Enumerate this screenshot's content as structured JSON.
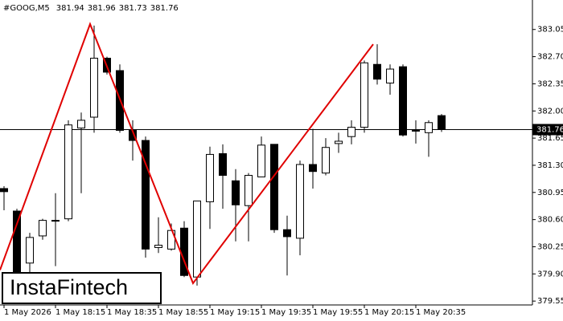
{
  "chart_data": {
    "type": "candlestick",
    "title": "#GOOG,M5",
    "watermark": "InstaFintech",
    "categories": [
      "1 May 2026",
      null,
      null,
      null,
      "1 May 18:15",
      null,
      null,
      null,
      "1 May 18:35",
      null,
      null,
      null,
      "1 May 18:55",
      null,
      null,
      null,
      "1 May 19:15",
      null,
      null,
      null,
      "1 May 19:35",
      null,
      null,
      null,
      "1 May 19:55",
      null,
      null,
      null,
      "1 May 20:15",
      null,
      null,
      null,
      "1 May 20:35",
      null,
      null
    ],
    "open": [
      381.0,
      380.71,
      380.04,
      380.39,
      380.58,
      380.61,
      381.78,
      381.92,
      382.68,
      382.52,
      381.75,
      381.62,
      380.24,
      380.22,
      380.49,
      379.86,
      380.83,
      381.45,
      381.1,
      380.78,
      381.15,
      381.57,
      380.47,
      380.36,
      381.31,
      381.2,
      381.58,
      381.67,
      381.79,
      382.6,
      382.36,
      382.57,
      381.74,
      381.72,
      381.94
    ],
    "high": [
      381.03,
      380.74,
      380.43,
      380.61,
      380.94,
      381.88,
      381.98,
      383.1,
      382.7,
      382.6,
      381.88,
      381.67,
      380.63,
      380.55,
      380.58,
      380.84,
      381.54,
      381.57,
      381.25,
      381.2,
      381.67,
      381.57,
      380.65,
      381.36,
      381.77,
      381.65,
      381.72,
      381.88,
      382.65,
      382.86,
      382.6,
      382.6,
      381.88,
      381.88,
      381.96
    ],
    "low": [
      380.72,
      379.88,
      379.91,
      380.34,
      380.0,
      380.58,
      380.94,
      381.72,
      382.47,
      381.72,
      381.36,
      380.11,
      380.17,
      380.2,
      379.86,
      379.75,
      380.48,
      380.74,
      380.32,
      380.32,
      381.15,
      380.43,
      379.88,
      380.14,
      381.0,
      381.17,
      381.46,
      381.57,
      381.72,
      382.34,
      382.21,
      381.67,
      381.58,
      381.41,
      381.73
    ],
    "close": [
      380.96,
      379.91,
      380.37,
      380.59,
      380.59,
      381.82,
      381.88,
      382.68,
      382.5,
      381.75,
      381.62,
      380.22,
      380.27,
      380.46,
      379.88,
      380.84,
      381.44,
      381.17,
      380.79,
      381.17,
      381.56,
      380.47,
      380.38,
      381.31,
      381.22,
      381.53,
      381.61,
      381.79,
      382.62,
      382.41,
      382.54,
      381.69,
      381.75,
      381.85,
      381.76
    ],
    "up_color": "#ffffff",
    "down_color": "#000000",
    "pattern": {
      "color": "#e00000",
      "x": [
        0,
        7,
        15,
        29
      ],
      "y": [
        379.95,
        383.12,
        379.78,
        382.86
      ]
    },
    "ylim": [
      379.5,
      383.43
    ],
    "yticks": [
      379.55,
      {
        "value": 379.9,
        "label": "379.90"
      },
      380.25,
      {
        "value": 380.6,
        "label": "380.60"
      },
      380.95,
      {
        "value": 381.3,
        "label": "381.30"
      },
      381.65,
      {
        "value": 382.0,
        "label": "382.00"
      },
      382.35,
      {
        "value": 382.7,
        "label": "382.70"
      },
      383.05
    ]
  }
}
